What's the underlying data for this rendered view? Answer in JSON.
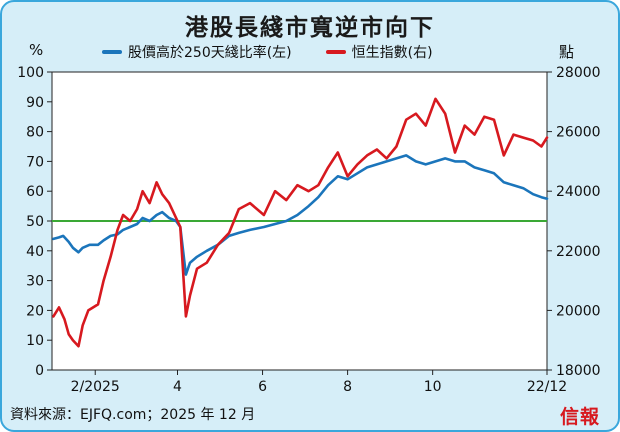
{
  "chart_data": {
    "type": "line",
    "title": "港股長綫市寬逆市向下",
    "left_unit": "%",
    "right_unit": "點",
    "x_tick_labels": [
      "2/2025",
      "4",
      "6",
      "8",
      "10",
      "22/12"
    ],
    "x_ticks": [
      "2025-02-01",
      "2025-04-01",
      "2025-06-01",
      "2025-08-01",
      "2025-10-01",
      "2025-12-22"
    ],
    "xlim": [
      "2025-01-01",
      "2025-12-22"
    ],
    "y_left": {
      "lim": [
        0,
        100
      ],
      "ticks": [
        0,
        10,
        20,
        30,
        40,
        50,
        60,
        70,
        80,
        90,
        100
      ]
    },
    "y_right": {
      "lim": [
        18000,
        28000
      ],
      "ticks": [
        18000,
        20000,
        22000,
        24000,
        26000,
        28000
      ]
    },
    "reference_line": {
      "axis": "left",
      "value": 50,
      "color": "#3aa835"
    },
    "series": [
      {
        "name": "股價高於250天綫比率(左)",
        "axis": "left",
        "color": "#1b75bb",
        "points": [
          [
            "2025-01-02",
            44
          ],
          [
            "2025-01-06",
            44.5
          ],
          [
            "2025-01-09",
            45
          ],
          [
            "2025-01-13",
            43
          ],
          [
            "2025-01-16",
            41
          ],
          [
            "2025-01-20",
            39.5
          ],
          [
            "2025-01-23",
            41
          ],
          [
            "2025-01-28",
            42
          ],
          [
            "2025-02-03",
            42
          ],
          [
            "2025-02-07",
            43.5
          ],
          [
            "2025-02-12",
            45
          ],
          [
            "2025-02-17",
            45.5
          ],
          [
            "2025-02-21",
            47
          ],
          [
            "2025-02-26",
            48
          ],
          [
            "2025-03-03",
            49
          ],
          [
            "2025-03-07",
            51
          ],
          [
            "2025-03-12",
            50
          ],
          [
            "2025-03-17",
            52
          ],
          [
            "2025-03-21",
            53
          ],
          [
            "2025-03-26",
            51
          ],
          [
            "2025-03-31",
            50
          ],
          [
            "2025-04-03",
            48
          ],
          [
            "2025-04-07",
            32
          ],
          [
            "2025-04-10",
            36
          ],
          [
            "2025-04-15",
            38
          ],
          [
            "2025-04-22",
            40
          ],
          [
            "2025-04-30",
            42
          ],
          [
            "2025-05-08",
            45
          ],
          [
            "2025-05-15",
            46
          ],
          [
            "2025-05-23",
            47
          ],
          [
            "2025-06-02",
            48
          ],
          [
            "2025-06-10",
            49
          ],
          [
            "2025-06-18",
            50
          ],
          [
            "2025-06-26",
            52
          ],
          [
            "2025-07-04",
            55
          ],
          [
            "2025-07-11",
            58
          ],
          [
            "2025-07-18",
            62
          ],
          [
            "2025-07-25",
            65
          ],
          [
            "2025-08-01",
            64
          ],
          [
            "2025-08-08",
            66
          ],
          [
            "2025-08-15",
            68
          ],
          [
            "2025-08-22",
            69
          ],
          [
            "2025-08-29",
            70
          ],
          [
            "2025-09-05",
            71
          ],
          [
            "2025-09-12",
            72
          ],
          [
            "2025-09-19",
            70
          ],
          [
            "2025-09-26",
            69
          ],
          [
            "2025-10-03",
            70
          ],
          [
            "2025-10-10",
            71
          ],
          [
            "2025-10-17",
            70
          ],
          [
            "2025-10-24",
            70
          ],
          [
            "2025-10-31",
            68
          ],
          [
            "2025-11-07",
            67
          ],
          [
            "2025-11-14",
            66
          ],
          [
            "2025-11-21",
            63
          ],
          [
            "2025-11-28",
            62
          ],
          [
            "2025-12-05",
            61
          ],
          [
            "2025-12-12",
            59
          ],
          [
            "2025-12-18",
            58
          ],
          [
            "2025-12-22",
            57.5
          ]
        ]
      },
      {
        "name": "恒生指數(右)",
        "axis": "right",
        "color": "#d7191f",
        "points": [
          [
            "2025-01-02",
            19800
          ],
          [
            "2025-01-06",
            20100
          ],
          [
            "2025-01-10",
            19700
          ],
          [
            "2025-01-13",
            19200
          ],
          [
            "2025-01-16",
            19000
          ],
          [
            "2025-01-20",
            18800
          ],
          [
            "2025-01-23",
            19500
          ],
          [
            "2025-01-27",
            20000
          ],
          [
            "2025-02-03",
            20200
          ],
          [
            "2025-02-07",
            21000
          ],
          [
            "2025-02-12",
            21800
          ],
          [
            "2025-02-17",
            22700
          ],
          [
            "2025-02-21",
            23200
          ],
          [
            "2025-02-26",
            23000
          ],
          [
            "2025-03-03",
            23400
          ],
          [
            "2025-03-07",
            24000
          ],
          [
            "2025-03-12",
            23600
          ],
          [
            "2025-03-17",
            24300
          ],
          [
            "2025-03-21",
            23900
          ],
          [
            "2025-03-26",
            23600
          ],
          [
            "2025-03-31",
            23100
          ],
          [
            "2025-04-03",
            22800
          ],
          [
            "2025-04-07",
            19800
          ],
          [
            "2025-04-10",
            20500
          ],
          [
            "2025-04-15",
            21400
          ],
          [
            "2025-04-22",
            21600
          ],
          [
            "2025-04-30",
            22200
          ],
          [
            "2025-05-08",
            22600
          ],
          [
            "2025-05-15",
            23400
          ],
          [
            "2025-05-23",
            23600
          ],
          [
            "2025-06-02",
            23200
          ],
          [
            "2025-06-10",
            24000
          ],
          [
            "2025-06-18",
            23700
          ],
          [
            "2025-06-26",
            24200
          ],
          [
            "2025-07-04",
            24000
          ],
          [
            "2025-07-11",
            24200
          ],
          [
            "2025-07-18",
            24800
          ],
          [
            "2025-07-25",
            25300
          ],
          [
            "2025-08-01",
            24500
          ],
          [
            "2025-08-08",
            24900
          ],
          [
            "2025-08-15",
            25200
          ],
          [
            "2025-08-22",
            25400
          ],
          [
            "2025-08-29",
            25100
          ],
          [
            "2025-09-05",
            25500
          ],
          [
            "2025-09-12",
            26400
          ],
          [
            "2025-09-19",
            26600
          ],
          [
            "2025-09-26",
            26200
          ],
          [
            "2025-10-03",
            27100
          ],
          [
            "2025-10-10",
            26600
          ],
          [
            "2025-10-17",
            25300
          ],
          [
            "2025-10-24",
            26200
          ],
          [
            "2025-10-31",
            25900
          ],
          [
            "2025-11-07",
            26500
          ],
          [
            "2025-11-14",
            26400
          ],
          [
            "2025-11-21",
            25200
          ],
          [
            "2025-11-28",
            25900
          ],
          [
            "2025-12-05",
            25800
          ],
          [
            "2025-12-12",
            25700
          ],
          [
            "2025-12-18",
            25500
          ],
          [
            "2025-12-22",
            25800
          ]
        ]
      }
    ]
  },
  "source_text": "資料來源：EJFQ.com；2025 年 12 月",
  "logo_text": "信報"
}
